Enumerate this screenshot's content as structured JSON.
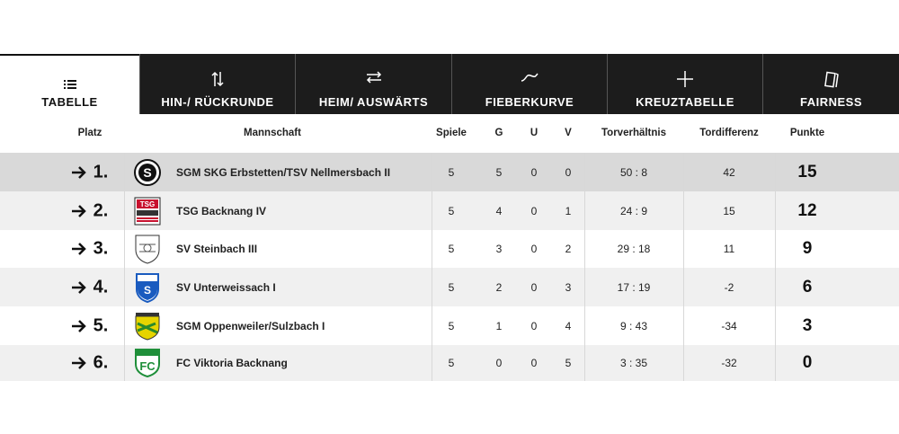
{
  "tabs": [
    "TABELLE",
    "HIN-/ RÜCKRUNDE",
    "HEIM/ AUSWÄRTS",
    "FIEBERKURVE",
    "KREUZTABELLE",
    "FAIRNESS"
  ],
  "table": {
    "headers": [
      "Platz",
      "Mannschaft",
      "Spiele",
      "G",
      "U",
      "V",
      "Torverhältnis",
      "Tordifferenz",
      "Punkte"
    ],
    "rows": [
      [
        "1.",
        "SGM SKG Erbstetten/TSV Nellmersbach II",
        "5",
        "5",
        "0",
        "0",
        "50 : 8",
        "42",
        "15"
      ],
      [
        "2.",
        "TSG Backnang IV",
        "5",
        "4",
        "0",
        "1",
        "24 : 9",
        "15",
        "12"
      ],
      [
        "3.",
        "SV Steinbach III",
        "5",
        "3",
        "0",
        "2",
        "29 : 18",
        "11",
        "9"
      ],
      [
        "4.",
        "SV Unterweissach I",
        "5",
        "2",
        "0",
        "3",
        "17 : 19",
        "-2",
        "6"
      ],
      [
        "5.",
        "SGM Oppenweiler/Sulzbach I",
        "5",
        "1",
        "0",
        "4",
        "9 : 43",
        "-34",
        "3"
      ],
      [
        "6.",
        "FC Viktoria Backnang",
        "5",
        "0",
        "0",
        "5",
        "3 : 35",
        "-32",
        "0"
      ]
    ]
  }
}
